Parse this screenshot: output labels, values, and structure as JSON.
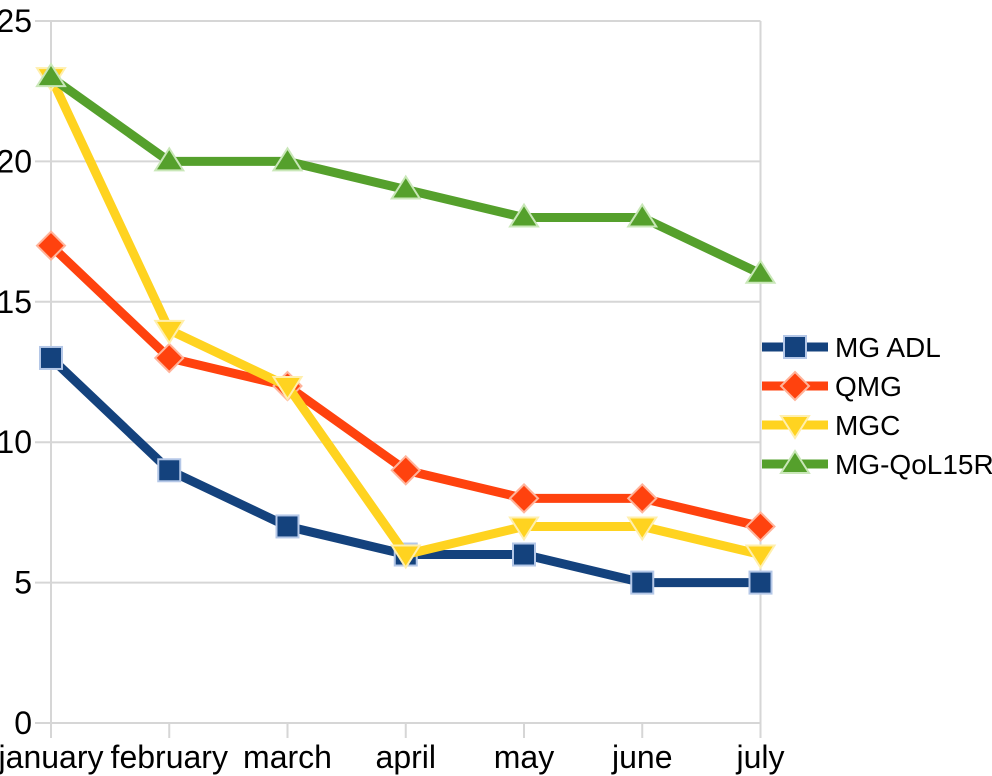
{
  "chart_data": {
    "type": "line",
    "categories": [
      "january",
      "february",
      "march",
      "april",
      "may",
      "june",
      "july"
    ],
    "series": [
      {
        "name": "MG ADL",
        "values": [
          13,
          9,
          7,
          6,
          6,
          5,
          5
        ],
        "color": "#14427D",
        "edge": "#B4C7E7",
        "marker": "square"
      },
      {
        "name": "QMG",
        "values": [
          17,
          13,
          12,
          9,
          8,
          8,
          7
        ],
        "color": "#FF420E",
        "edge": "#FFB49B",
        "marker": "diamond"
      },
      {
        "name": "MGC",
        "values": [
          23,
          14,
          12,
          6,
          7,
          7,
          6
        ],
        "color": "#FFD320",
        "edge": "#FFEFAD",
        "marker": "triangle-down"
      },
      {
        "name": "MG-QoL15R",
        "values": [
          23,
          20,
          20,
          19,
          18,
          18,
          16
        ],
        "color": "#55A02C",
        "edge": "#C9E7B8",
        "marker": "triangle-up"
      }
    ],
    "title": "",
    "xlabel": "",
    "ylabel": "",
    "ylim": [
      0,
      25
    ],
    "ytick_step": 5,
    "yticks": [
      0,
      5,
      10,
      15,
      20,
      25
    ],
    "grid": "horizontal",
    "gridline_color": "#D6D6D6",
    "text_color": "#000000",
    "background": "#FFFFFF",
    "legend_position": "right"
  }
}
